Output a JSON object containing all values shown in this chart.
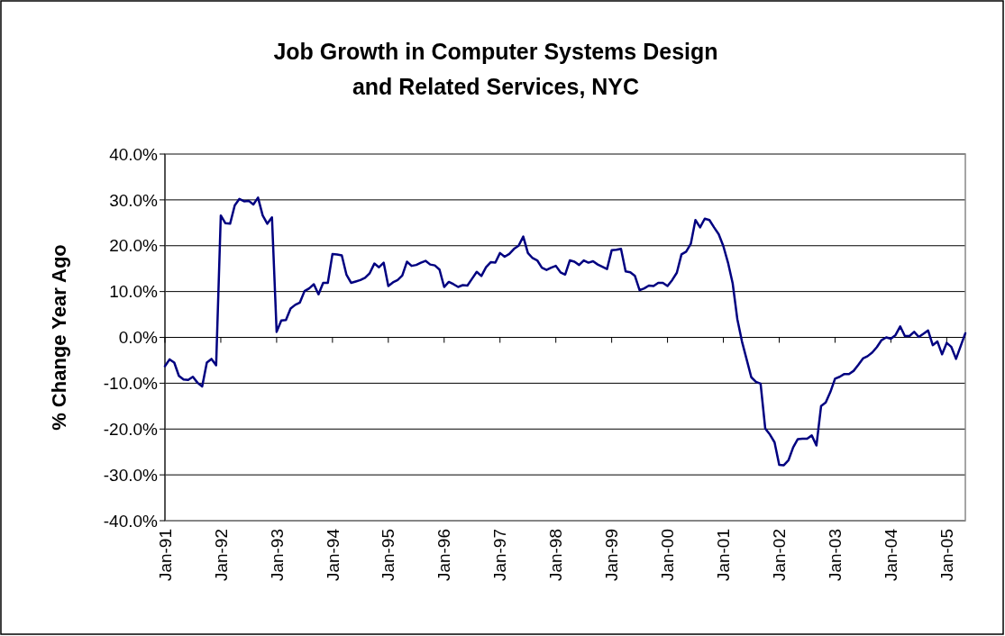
{
  "chart_data": {
    "type": "line",
    "title": "Job Growth in Computer Systems Design\nand Related Services, NYC",
    "ylabel": "% Change Year Ago",
    "categories": [
      "Jan-91",
      null,
      null,
      null,
      null,
      null,
      null,
      null,
      null,
      null,
      null,
      null,
      "Jan-92",
      null,
      null,
      null,
      null,
      null,
      null,
      null,
      null,
      null,
      null,
      null,
      "Jan-93",
      null,
      null,
      null,
      null,
      null,
      null,
      null,
      null,
      null,
      null,
      null,
      "Jan-94",
      null,
      null,
      null,
      null,
      null,
      null,
      null,
      null,
      null,
      null,
      null,
      "Jan-95",
      null,
      null,
      null,
      null,
      null,
      null,
      null,
      null,
      null,
      null,
      null,
      "Jan-96",
      null,
      null,
      null,
      null,
      null,
      null,
      null,
      null,
      null,
      null,
      null,
      "Jan-97",
      null,
      null,
      null,
      null,
      null,
      null,
      null,
      null,
      null,
      null,
      null,
      "Jan-98",
      null,
      null,
      null,
      null,
      null,
      null,
      null,
      null,
      null,
      null,
      null,
      "Jan-99",
      null,
      null,
      null,
      null,
      null,
      null,
      null,
      null,
      null,
      null,
      null,
      "Jan-00",
      null,
      null,
      null,
      null,
      null,
      null,
      null,
      null,
      null,
      null,
      null,
      "Jan-01",
      null,
      null,
      null,
      null,
      null,
      null,
      null,
      null,
      null,
      null,
      null,
      "Jan-02",
      null,
      null,
      null,
      null,
      null,
      null,
      null,
      null,
      null,
      null,
      null,
      "Jan-03",
      null,
      null,
      null,
      null,
      null,
      null,
      null,
      null,
      null,
      null,
      null,
      "Jan-04",
      null,
      null,
      null,
      null,
      null,
      null,
      null,
      null,
      null,
      null,
      null,
      "Jan-05",
      null,
      null,
      null,
      null
    ],
    "series": [
      {
        "color": "#000080",
        "values": [
          -6.3,
          -4.8,
          -5.5,
          -8.4,
          -9.2,
          -9.3,
          -8.6,
          -9.9,
          -10.7,
          -5.5,
          -4.7,
          -6.1,
          26.6,
          24.9,
          24.8,
          28.8,
          30.2,
          29.7,
          29.8,
          29.0,
          30.5,
          26.6,
          24.8,
          26.2,
          1.2,
          3.7,
          3.8,
          6.3,
          7.1,
          7.6,
          10.1,
          10.7,
          11.6,
          9.4,
          11.9,
          11.9,
          18.2,
          18.1,
          17.9,
          13.7,
          11.9,
          12.2,
          12.5,
          13.0,
          14.0,
          16.1,
          15.3,
          16.3,
          11.2,
          12.0,
          12.5,
          13.5,
          16.5,
          15.6,
          15.8,
          16.3,
          16.7,
          15.9,
          15.7,
          14.8,
          11.0,
          12.1,
          11.6,
          11.0,
          11.4,
          11.3,
          12.8,
          14.3,
          13.4,
          15.3,
          16.4,
          16.3,
          18.4,
          17.6,
          18.2,
          19.3,
          20.0,
          22.0,
          18.4,
          17.3,
          16.8,
          15.2,
          14.7,
          15.2,
          15.6,
          14.2,
          13.7,
          16.8,
          16.5,
          15.8,
          16.8,
          16.3,
          16.6,
          15.9,
          15.4,
          14.9,
          19.0,
          19.1,
          19.3,
          14.4,
          14.2,
          13.4,
          10.3,
          10.7,
          11.3,
          11.2,
          11.9,
          11.9,
          11.2,
          12.5,
          14.1,
          18.1,
          18.7,
          20.4,
          25.6,
          24.0,
          25.9,
          25.6,
          24.0,
          22.5,
          19.9,
          16.3,
          11.8,
          4.0,
          -0.9,
          -4.8,
          -8.7,
          -9.7,
          -10.1,
          -19.9,
          -21.2,
          -22.9,
          -27.8,
          -27.9,
          -26.8,
          -24.0,
          -22.2,
          -22.1,
          -22.1,
          -21.4,
          -23.6,
          -15.0,
          -14.2,
          -11.9,
          -9.0,
          -8.6,
          -8.0,
          -8.0,
          -7.3,
          -6.0,
          -4.6,
          -4.1,
          -3.3,
          -2.1,
          -0.6,
          0.0,
          -0.3,
          0.5,
          2.4,
          0.3,
          0.3,
          1.2,
          0.1,
          0.8,
          1.5,
          -1.7,
          -0.9,
          -3.7,
          -1.2,
          -2.1,
          -4.7,
          -1.9,
          0.9
        ]
      }
    ],
    "ylim": [
      -40,
      40
    ],
    "yticks": [
      {
        "value": -40,
        "label": "-40.0%"
      },
      {
        "value": -30,
        "label": "-30.0%"
      },
      {
        "value": -20,
        "label": "-20.0%"
      },
      {
        "value": -10,
        "label": "-10.0%"
      },
      {
        "value": 0,
        "label": "0.0%"
      },
      {
        "value": 10,
        "label": "10.0%"
      },
      {
        "value": 20,
        "label": "20.0%"
      },
      {
        "value": 30,
        "label": "30.0%"
      },
      {
        "value": 40,
        "label": "40.0%"
      }
    ],
    "grid": "y",
    "marker": "none",
    "line_style": "solid"
  }
}
